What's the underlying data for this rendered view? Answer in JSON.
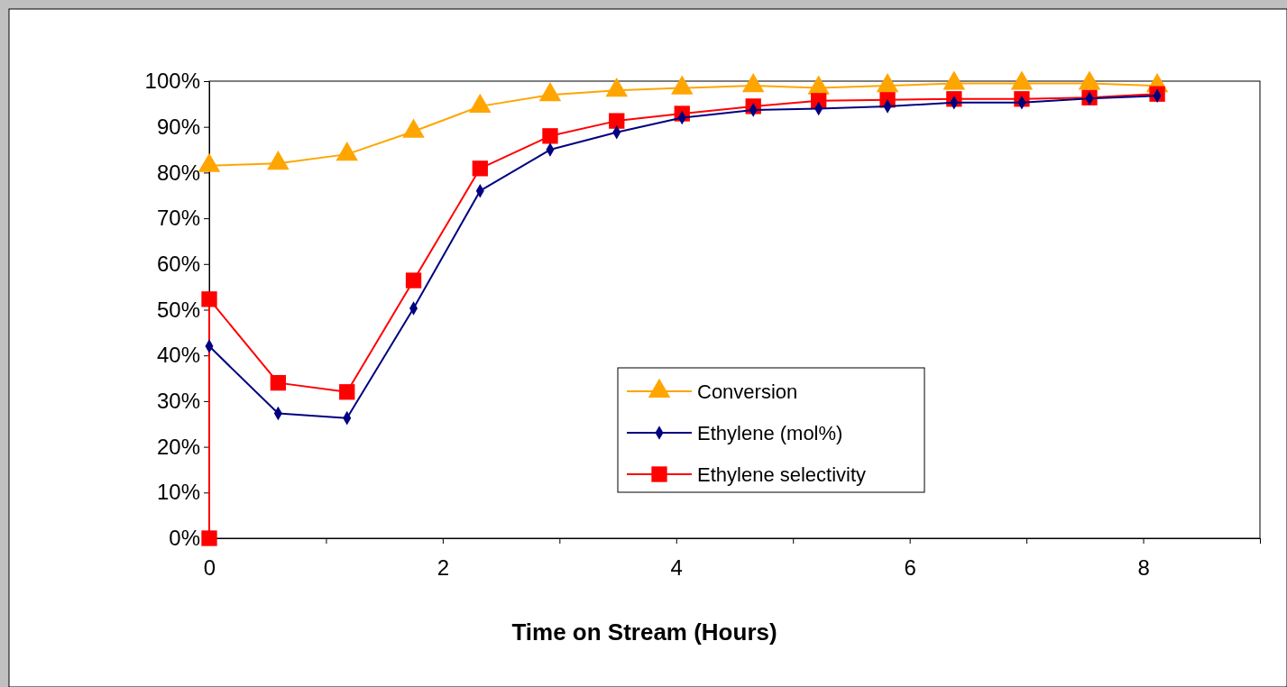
{
  "chart_data": {
    "type": "line",
    "xlabel": "Time on Stream (Hours)",
    "xlim": [
      0,
      9
    ],
    "xticks": [
      0,
      {
        "value": 1,
        "label": null
      },
      2,
      {
        "value": 3,
        "label": null
      },
      4,
      {
        "value": 5,
        "label": null
      },
      6,
      {
        "value": 7,
        "label": null
      },
      8,
      {
        "value": 9,
        "label": null
      }
    ],
    "ylim": [
      0,
      100
    ],
    "yticks": [
      {
        "value": 0,
        "label": "0%"
      },
      {
        "value": 10,
        "label": "10%"
      },
      {
        "value": 20,
        "label": "20%"
      },
      {
        "value": 30,
        "label": "30%"
      },
      {
        "value": 40,
        "label": "40%"
      },
      {
        "value": 50,
        "label": "50%"
      },
      {
        "value": 60,
        "label": "60%"
      },
      {
        "value": 70,
        "label": "70%"
      },
      {
        "value": 80,
        "label": "80%"
      },
      {
        "value": 90,
        "label": "90%"
      },
      {
        "value": 100,
        "label": "100%"
      }
    ],
    "grid": false,
    "legend": "bottom right",
    "x": [
      0,
      0,
      0.59,
      1.18,
      1.75,
      2.32,
      2.92,
      3.49,
      4.05,
      4.66,
      5.22,
      5.81,
      6.38,
      6.96,
      7.54,
      8.12
    ],
    "series": [
      {
        "name": "Conversion",
        "color": "#ffa500",
        "marker": "triangle",
        "values": [
          null,
          81.5,
          82,
          84,
          89,
          94.5,
          97,
          98,
          98.5,
          99,
          98.5,
          99,
          99.5,
          99.5,
          99.5,
          99
        ]
      },
      {
        "name": "Ethylene (mol%)",
        "color": "#000080",
        "marker": "diamond",
        "values": [
          null,
          42,
          27.3,
          26.3,
          50.3,
          76,
          85,
          88.8,
          92,
          93.7,
          94,
          94.5,
          95.3,
          95.3,
          96.2,
          96.8
        ]
      },
      {
        "name": "Ethylene selectivity",
        "color": "#ff0000",
        "marker": "square",
        "values": [
          0,
          52.3,
          34,
          32,
          56.4,
          80.9,
          88,
          91.3,
          92.9,
          94.5,
          95.7,
          95.9,
          96.1,
          96.1,
          96.4,
          97.2
        ]
      }
    ]
  }
}
